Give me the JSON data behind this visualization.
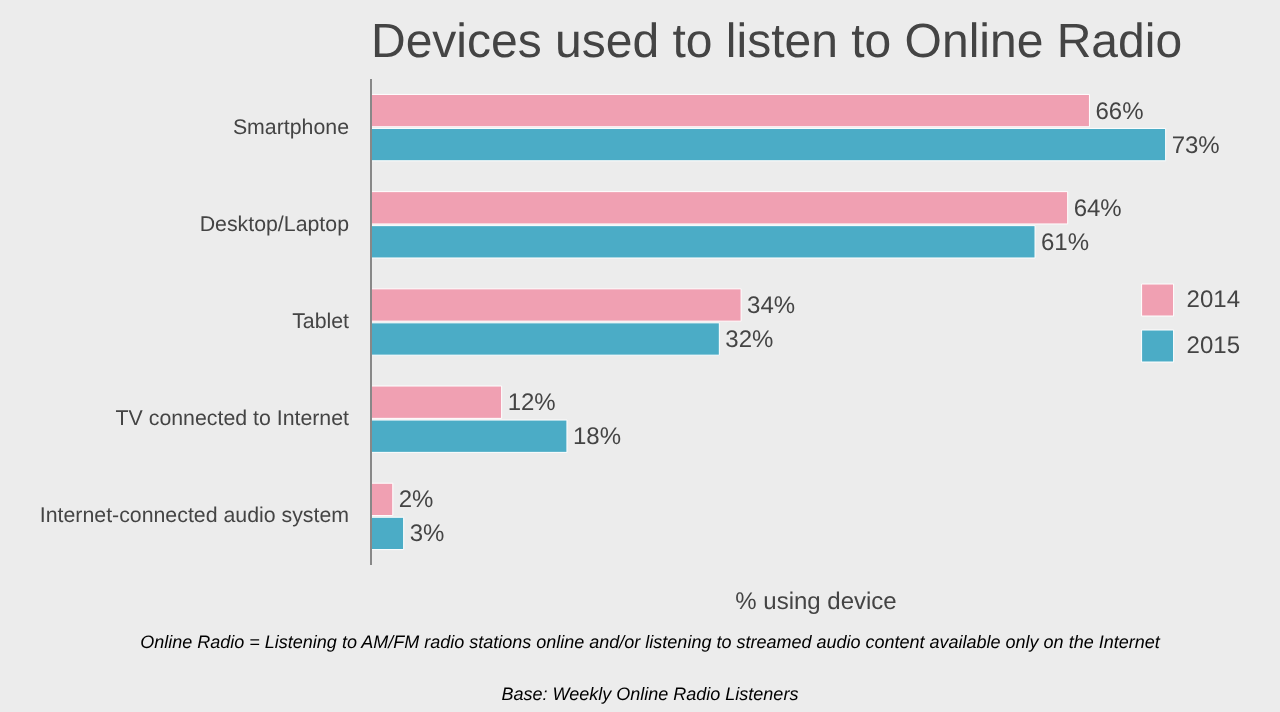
{
  "chart_data": {
    "type": "bar",
    "orientation": "horizontal",
    "title": "Devices used to listen to Online Radio",
    "xlabel": "% using device",
    "categories": [
      "Smartphone",
      "Desktop/Laptop",
      "Tablet",
      "TV connected to Internet",
      "Internet-connected audio system"
    ],
    "series": [
      {
        "name": "2014",
        "color": "#f0a0b2",
        "values": [
          66,
          64,
          34,
          12,
          2
        ],
        "value_labels": [
          "66%",
          "64%",
          "34%",
          "12%",
          "2%"
        ]
      },
      {
        "name": "2015",
        "color": "#4bacc6",
        "values": [
          73,
          61,
          32,
          18,
          3
        ],
        "value_labels": [
          "73%",
          "61%",
          "32%",
          "18%",
          "3%"
        ]
      }
    ],
    "legend": "right",
    "grid": false,
    "annotations": [
      "Online Radio = Listening to AM/FM radio stations online and/or listening to streamed audio content available only on the Internet",
      "Base: Weekly Online Radio Listeners"
    ]
  }
}
